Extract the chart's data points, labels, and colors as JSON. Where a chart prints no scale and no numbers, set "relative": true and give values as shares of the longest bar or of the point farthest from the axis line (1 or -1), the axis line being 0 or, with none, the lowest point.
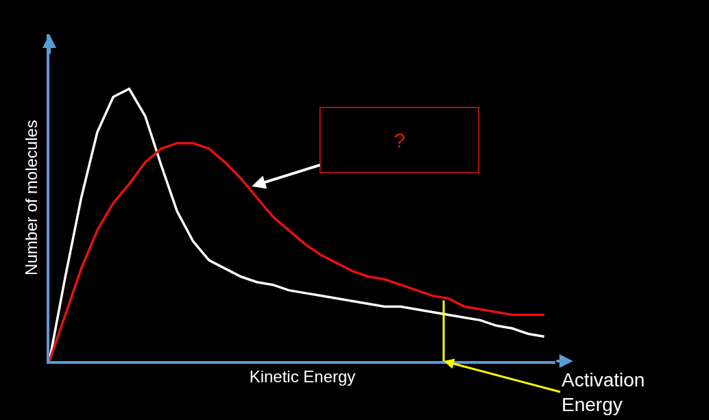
{
  "chart_data": {
    "type": "line",
    "relative": true,
    "xlabel": "Kinetic Energy",
    "ylabel": "Number of molecules",
    "categories": [
      null,
      null,
      null,
      null,
      null,
      null,
      null,
      null,
      null,
      null,
      null,
      null,
      null,
      null,
      null,
      null,
      null,
      null,
      null,
      null,
      null,
      null,
      null,
      null,
      null,
      null,
      null,
      null,
      null,
      null,
      null,
      null
    ],
    "series": [
      {
        "color": "#ffffff",
        "values": [
          0,
          0.31,
          0.6,
          0.84,
          0.97,
          1.0,
          0.9,
          0.72,
          0.55,
          0.44,
          0.37,
          0.34,
          0.31,
          0.29,
          0.28,
          0.26,
          0.25,
          0.24,
          0.23,
          0.22,
          0.21,
          0.2,
          0.2,
          0.19,
          0.18,
          0.17,
          0.16,
          0.15,
          0.13,
          0.12,
          0.1,
          0.09
        ]
      },
      {
        "color": "#e8120c",
        "values": [
          0,
          0.17,
          0.34,
          0.48,
          0.58,
          0.65,
          0.73,
          0.78,
          0.8,
          0.8,
          0.78,
          0.73,
          0.67,
          0.6,
          0.53,
          0.48,
          0.43,
          0.39,
          0.36,
          0.33,
          0.31,
          0.3,
          0.28,
          0.26,
          0.24,
          0.23,
          0.2,
          0.19,
          0.18,
          0.17,
          0.17,
          0.17
        ]
      }
    ],
    "annotations": [
      "?",
      "Activation Energy"
    ],
    "grid": false,
    "legend": false,
    "tick_labels": false,
    "marker": "none",
    "line_style": "solid"
  }
}
